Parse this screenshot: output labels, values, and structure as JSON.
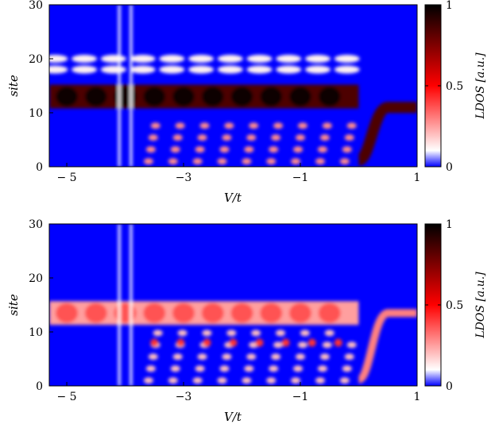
{
  "chart_data": [
    {
      "type": "heatmap",
      "xlabel": "V/t",
      "ylabel": "site",
      "xlim": [
        -5.3,
        1
      ],
      "ylim": [
        0,
        30
      ],
      "xticks": [
        "− 5",
        "−3",
        "−1",
        "1"
      ],
      "xtick_values": [
        -5,
        -3,
        -1,
        1
      ],
      "yticks": [
        "0",
        "10",
        "20",
        "30"
      ],
      "ytick_values": [
        0,
        10,
        20,
        30
      ],
      "colorbar": {
        "label": "LDOS [a.u.]",
        "ticks": [
          "0",
          "0.5",
          "1"
        ],
        "tick_values": [
          0,
          0.5,
          1
        ],
        "colormap": [
          "#0000ff",
          "#ffffff",
          "#ff0000",
          "#000000"
        ]
      },
      "features": {
        "strong_band_center_site": 13,
        "strong_band_intensity": 0.85,
        "upper_band_sites": [
          18,
          20
        ],
        "transition_V": 0.0,
        "after_transition_band_site": 11,
        "vertical_lines_V": [
          -4.1,
          -3.9
        ]
      }
    },
    {
      "type": "heatmap",
      "xlabel": "V/t",
      "ylabel": "site",
      "xlim": [
        -5.3,
        1
      ],
      "ylim": [
        0,
        30
      ],
      "xticks": [
        "− 5",
        "−3",
        "−1",
        "1"
      ],
      "xtick_values": [
        -5,
        -3,
        -1,
        1
      ],
      "yticks": [
        "0",
        "10",
        "20",
        "30"
      ],
      "ytick_values": [
        0,
        10,
        20,
        30
      ],
      "colorbar": {
        "label": "LDOS [a.u.]",
        "ticks": [
          "0",
          "0.5",
          "1"
        ],
        "tick_values": [
          0,
          0.5,
          1
        ],
        "colormap": [
          "#0000ff",
          "#ffffff",
          "#ff0000",
          "#000000"
        ]
      },
      "features": {
        "strong_band_center_site": 13.5,
        "strong_band_intensity": 0.25,
        "transition_V": 0.0,
        "after_transition_band_site": 13.5,
        "vertical_lines_V": [
          -4.1,
          -3.9
        ],
        "lower_peaks_site": 8
      }
    }
  ]
}
